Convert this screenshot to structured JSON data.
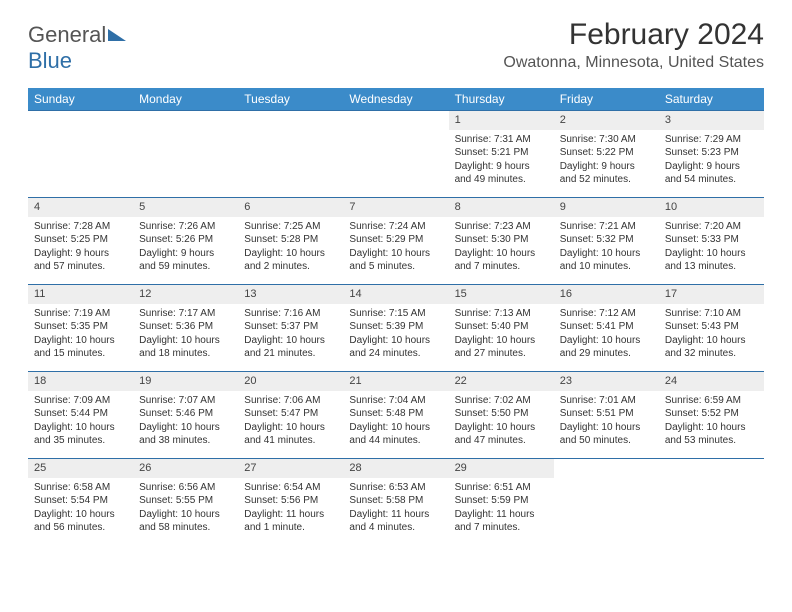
{
  "logo": {
    "part1": "General",
    "part2": "Blue"
  },
  "title": "February 2024",
  "location": "Owatonna, Minnesota, United States",
  "colors": {
    "header_bg": "#3b8bc9",
    "week_border": "#2f6fa7",
    "daynum_bg": "#eeeeee",
    "text": "#333333"
  },
  "days_of_week": [
    "Sunday",
    "Monday",
    "Tuesday",
    "Wednesday",
    "Thursday",
    "Friday",
    "Saturday"
  ],
  "weeks": [
    [
      {
        "n": "",
        "sr": "",
        "ss": "",
        "dl": ""
      },
      {
        "n": "",
        "sr": "",
        "ss": "",
        "dl": ""
      },
      {
        "n": "",
        "sr": "",
        "ss": "",
        "dl": ""
      },
      {
        "n": "",
        "sr": "",
        "ss": "",
        "dl": ""
      },
      {
        "n": "1",
        "sr": "Sunrise: 7:31 AM",
        "ss": "Sunset: 5:21 PM",
        "dl": "Daylight: 9 hours and 49 minutes."
      },
      {
        "n": "2",
        "sr": "Sunrise: 7:30 AM",
        "ss": "Sunset: 5:22 PM",
        "dl": "Daylight: 9 hours and 52 minutes."
      },
      {
        "n": "3",
        "sr": "Sunrise: 7:29 AM",
        "ss": "Sunset: 5:23 PM",
        "dl": "Daylight: 9 hours and 54 minutes."
      }
    ],
    [
      {
        "n": "4",
        "sr": "Sunrise: 7:28 AM",
        "ss": "Sunset: 5:25 PM",
        "dl": "Daylight: 9 hours and 57 minutes."
      },
      {
        "n": "5",
        "sr": "Sunrise: 7:26 AM",
        "ss": "Sunset: 5:26 PM",
        "dl": "Daylight: 9 hours and 59 minutes."
      },
      {
        "n": "6",
        "sr": "Sunrise: 7:25 AM",
        "ss": "Sunset: 5:28 PM",
        "dl": "Daylight: 10 hours and 2 minutes."
      },
      {
        "n": "7",
        "sr": "Sunrise: 7:24 AM",
        "ss": "Sunset: 5:29 PM",
        "dl": "Daylight: 10 hours and 5 minutes."
      },
      {
        "n": "8",
        "sr": "Sunrise: 7:23 AM",
        "ss": "Sunset: 5:30 PM",
        "dl": "Daylight: 10 hours and 7 minutes."
      },
      {
        "n": "9",
        "sr": "Sunrise: 7:21 AM",
        "ss": "Sunset: 5:32 PM",
        "dl": "Daylight: 10 hours and 10 minutes."
      },
      {
        "n": "10",
        "sr": "Sunrise: 7:20 AM",
        "ss": "Sunset: 5:33 PM",
        "dl": "Daylight: 10 hours and 13 minutes."
      }
    ],
    [
      {
        "n": "11",
        "sr": "Sunrise: 7:19 AM",
        "ss": "Sunset: 5:35 PM",
        "dl": "Daylight: 10 hours and 15 minutes."
      },
      {
        "n": "12",
        "sr": "Sunrise: 7:17 AM",
        "ss": "Sunset: 5:36 PM",
        "dl": "Daylight: 10 hours and 18 minutes."
      },
      {
        "n": "13",
        "sr": "Sunrise: 7:16 AM",
        "ss": "Sunset: 5:37 PM",
        "dl": "Daylight: 10 hours and 21 minutes."
      },
      {
        "n": "14",
        "sr": "Sunrise: 7:15 AM",
        "ss": "Sunset: 5:39 PM",
        "dl": "Daylight: 10 hours and 24 minutes."
      },
      {
        "n": "15",
        "sr": "Sunrise: 7:13 AM",
        "ss": "Sunset: 5:40 PM",
        "dl": "Daylight: 10 hours and 27 minutes."
      },
      {
        "n": "16",
        "sr": "Sunrise: 7:12 AM",
        "ss": "Sunset: 5:41 PM",
        "dl": "Daylight: 10 hours and 29 minutes."
      },
      {
        "n": "17",
        "sr": "Sunrise: 7:10 AM",
        "ss": "Sunset: 5:43 PM",
        "dl": "Daylight: 10 hours and 32 minutes."
      }
    ],
    [
      {
        "n": "18",
        "sr": "Sunrise: 7:09 AM",
        "ss": "Sunset: 5:44 PM",
        "dl": "Daylight: 10 hours and 35 minutes."
      },
      {
        "n": "19",
        "sr": "Sunrise: 7:07 AM",
        "ss": "Sunset: 5:46 PM",
        "dl": "Daylight: 10 hours and 38 minutes."
      },
      {
        "n": "20",
        "sr": "Sunrise: 7:06 AM",
        "ss": "Sunset: 5:47 PM",
        "dl": "Daylight: 10 hours and 41 minutes."
      },
      {
        "n": "21",
        "sr": "Sunrise: 7:04 AM",
        "ss": "Sunset: 5:48 PM",
        "dl": "Daylight: 10 hours and 44 minutes."
      },
      {
        "n": "22",
        "sr": "Sunrise: 7:02 AM",
        "ss": "Sunset: 5:50 PM",
        "dl": "Daylight: 10 hours and 47 minutes."
      },
      {
        "n": "23",
        "sr": "Sunrise: 7:01 AM",
        "ss": "Sunset: 5:51 PM",
        "dl": "Daylight: 10 hours and 50 minutes."
      },
      {
        "n": "24",
        "sr": "Sunrise: 6:59 AM",
        "ss": "Sunset: 5:52 PM",
        "dl": "Daylight: 10 hours and 53 minutes."
      }
    ],
    [
      {
        "n": "25",
        "sr": "Sunrise: 6:58 AM",
        "ss": "Sunset: 5:54 PM",
        "dl": "Daylight: 10 hours and 56 minutes."
      },
      {
        "n": "26",
        "sr": "Sunrise: 6:56 AM",
        "ss": "Sunset: 5:55 PM",
        "dl": "Daylight: 10 hours and 58 minutes."
      },
      {
        "n": "27",
        "sr": "Sunrise: 6:54 AM",
        "ss": "Sunset: 5:56 PM",
        "dl": "Daylight: 11 hours and 1 minute."
      },
      {
        "n": "28",
        "sr": "Sunrise: 6:53 AM",
        "ss": "Sunset: 5:58 PM",
        "dl": "Daylight: 11 hours and 4 minutes."
      },
      {
        "n": "29",
        "sr": "Sunrise: 6:51 AM",
        "ss": "Sunset: 5:59 PM",
        "dl": "Daylight: 11 hours and 7 minutes."
      },
      {
        "n": "",
        "sr": "",
        "ss": "",
        "dl": ""
      },
      {
        "n": "",
        "sr": "",
        "ss": "",
        "dl": ""
      }
    ]
  ]
}
